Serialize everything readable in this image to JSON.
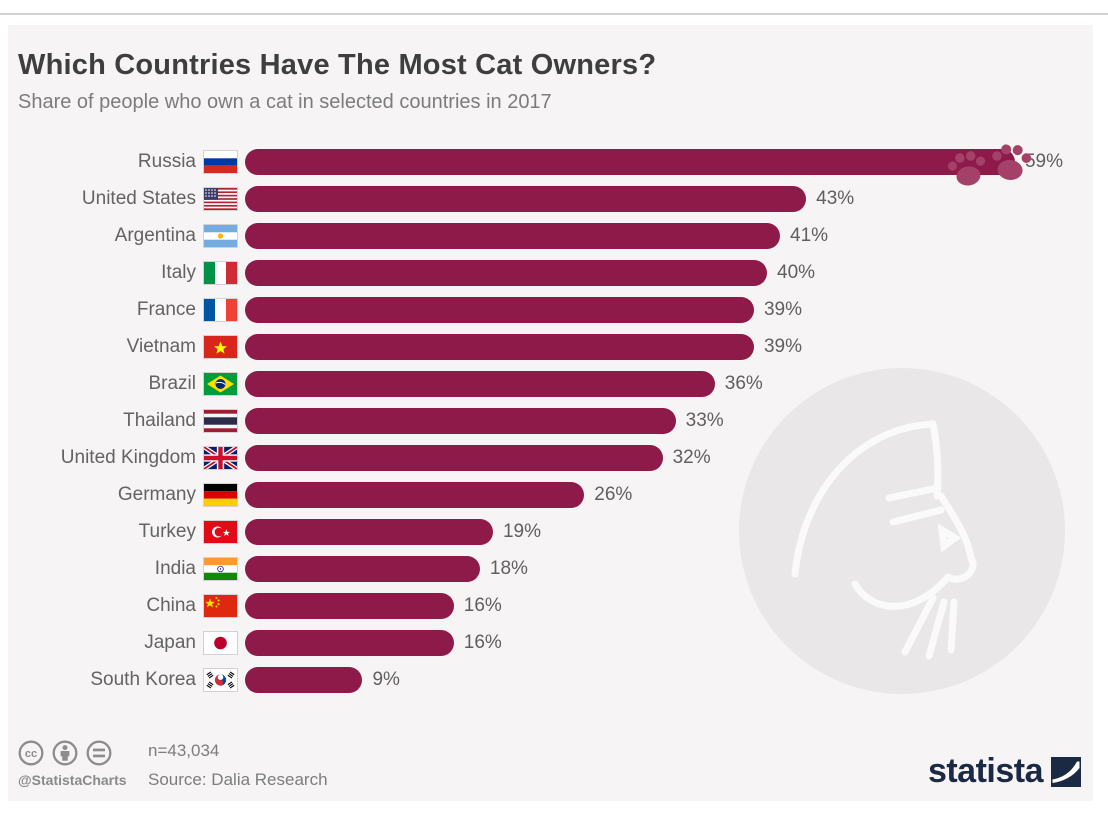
{
  "header": {
    "title": "Which Countries Have The Most Cat Owners?",
    "subtitle": "Share of people who own a cat in selected countries in 2017"
  },
  "chart_data": {
    "type": "bar",
    "orientation": "horizontal",
    "title": "Which Countries Have The Most Cat Owners?",
    "subtitle": "Share of people who own a cat in selected countries in 2017",
    "categories": [
      "Russia",
      "United States",
      "Argentina",
      "Italy",
      "France",
      "Vietnam",
      "Brazil",
      "Thailand",
      "United Kingdom",
      "Germany",
      "Turkey",
      "India",
      "China",
      "Japan",
      "South Korea"
    ],
    "values": [
      59,
      43,
      41,
      40,
      39,
      39,
      36,
      33,
      32,
      26,
      19,
      18,
      16,
      16,
      9
    ],
    "value_labels": [
      "59%",
      "43%",
      "41%",
      "40%",
      "39%",
      "39%",
      "36%",
      "33%",
      "32%",
      "26%",
      "19%",
      "18%",
      "16%",
      "16%",
      "9%"
    ],
    "unit": "%",
    "xlabel": "",
    "ylabel": "",
    "xlim": [
      0,
      62
    ],
    "grid": false,
    "legend": false,
    "bar_color": "#8d1a49",
    "annotations": [
      "paw-prints at end of Russia bar",
      "cat-outline watermark circle"
    ]
  },
  "footer": {
    "handle": "@StatistaCharts",
    "sample": "n=43,034",
    "source": "Source: Dalia Research",
    "brand": "statista"
  },
  "icons": {
    "license": [
      "cc-icon",
      "attribution-icon",
      "equals-icon"
    ],
    "watermark": "cat-outline",
    "decoration": "paw-prints"
  },
  "colors": {
    "bar": "#8d1a49",
    "paw": "#a34169",
    "canvas_bg": "#f6f4f5",
    "watermark_circle": "#e9e7e8",
    "brand_navy": "#1b2a44",
    "title_text": "#3e3e3e",
    "subtitle_text": "#7c7c7c"
  }
}
